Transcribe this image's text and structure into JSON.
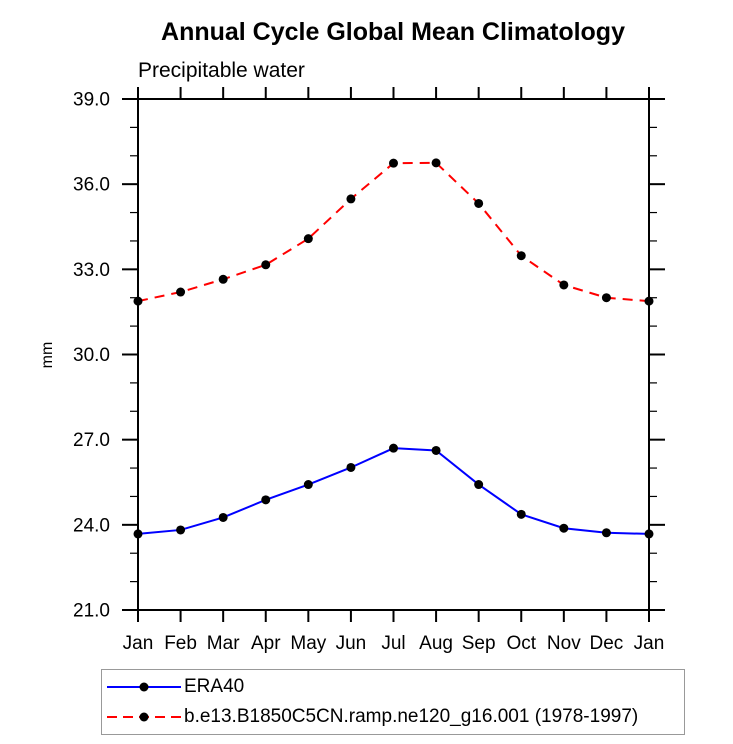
{
  "window": {
    "background": "#ffffff"
  },
  "chart_data": {
    "type": "line",
    "title": "Annual Cycle Global Mean Climatology",
    "subtitle": "Precipitable water",
    "xlabel": "",
    "ylabel": "mm",
    "categories": [
      "Jan",
      "Feb",
      "Mar",
      "Apr",
      "May",
      "Jun",
      "Jul",
      "Aug",
      "Sep",
      "Oct",
      "Nov",
      "Dec",
      "Jan"
    ],
    "ylim": [
      21.0,
      39.0
    ],
    "ytick_major_interval": 3.0,
    "ytick_minor_interval": 1.0,
    "ytick_labels": [
      "21.0",
      "24.0",
      "27.0",
      "30.0",
      "33.0",
      "36.0",
      "39.0"
    ],
    "grid": false,
    "axis_color": "#000000",
    "legend_position": "bottom-left",
    "marker_color": "#000000",
    "series": [
      {
        "name": "ERA40",
        "color": "#0000ff",
        "line_style": "solid",
        "marker": "circle",
        "values": [
          23.68,
          23.82,
          24.26,
          24.88,
          25.42,
          26.02,
          26.7,
          26.62,
          25.42,
          24.37,
          23.88,
          23.72,
          23.68
        ]
      },
      {
        "name": "b.e13.B1850C5CN.ramp.ne120_g16.001 (1978-1997)",
        "color": "#ff0000",
        "line_style": "dashed",
        "marker": "circle",
        "values": [
          31.88,
          32.2,
          32.65,
          33.16,
          34.08,
          35.48,
          36.74,
          36.75,
          35.32,
          33.48,
          32.45,
          32.0,
          31.88
        ]
      }
    ]
  }
}
